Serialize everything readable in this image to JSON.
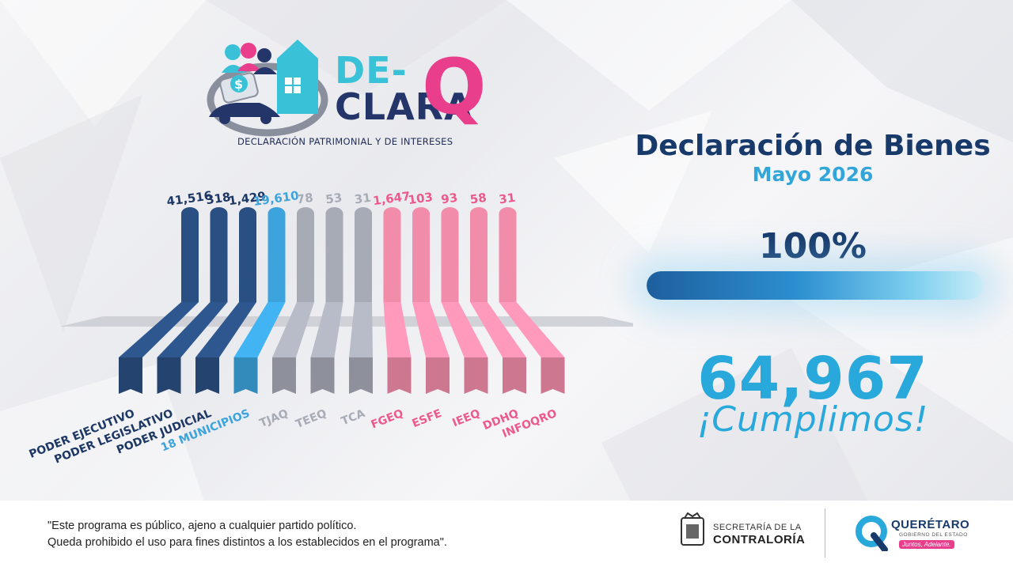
{
  "logo": {
    "de": "DE-",
    "clara": "CLARA",
    "q": "Q",
    "tagline": "DECLARACIÓN PATRIMONIAL Y DE INTERESES"
  },
  "panel": {
    "title": "Declaración de Bienes",
    "period": "Mayo 2026",
    "percent_label": "100%",
    "progress": 1.0,
    "total": "64,967",
    "slogan": "¡Cumplimos!"
  },
  "chart_data": {
    "type": "bar",
    "categories": [
      "PODER EJECUTIVO",
      "PODER LEGISLATIVO",
      "PODER JUDICIAL",
      "18 MUNICIPIOS",
      "TJAQ",
      "TEEQ",
      "TCA",
      "FGEQ",
      "ESFE",
      "IEEQ",
      "DDHQ",
      "INFOQRO"
    ],
    "values": [
      41516,
      318,
      1429,
      19610,
      78,
      53,
      31,
      1647,
      103,
      93,
      58,
      31
    ],
    "value_labels": [
      "41,516",
      "318",
      "1,429",
      "19,610",
      "78",
      "53",
      "31",
      "1,647",
      "103",
      "93",
      "58",
      "31"
    ],
    "colors": [
      "#2a4f82",
      "#2a4f82",
      "#2a4f82",
      "#3ca3dd",
      "#a7abb6",
      "#a7abb6",
      "#a7abb6",
      "#f28cab",
      "#f28cab",
      "#f28cab",
      "#f28cab",
      "#f28cab"
    ],
    "label_colors": [
      "#1d3864",
      "#1d3864",
      "#1d3864",
      "#3ca3dd",
      "#a7abb6",
      "#a7abb6",
      "#a7abb6",
      "#ec5a8c",
      "#ec5a8c",
      "#ec5a8c",
      "#ec5a8c",
      "#ec5a8c"
    ],
    "title": "",
    "xlabel": "",
    "ylabel": ""
  },
  "footer": {
    "disclaimer_line1": "\"Este programa es público, ajeno a cualquier partido político.",
    "disclaimer_line2": "Queda prohibido el uso para fines distintos a los establecidos en el programa\".",
    "secretaria": "SECRETARÍA DE LA",
    "contraloria": "CONTRALORÍA",
    "seal_text": "QUERÉTARO",
    "state_name": "QUERÉTARO",
    "state_gob": "GOBIERNO DEL ESTADO",
    "state_tag": "Juntos, Adelante."
  }
}
